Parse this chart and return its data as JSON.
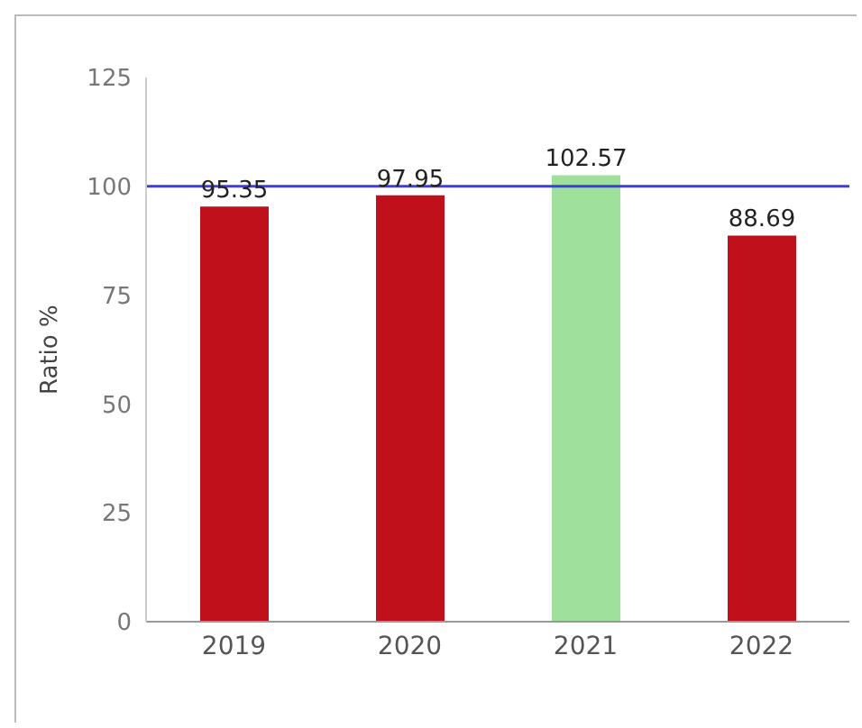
{
  "chart_data": {
    "type": "bar",
    "ylabel": "Ratio %",
    "categories": [
      "2019",
      "2020",
      "2021",
      "2022"
    ],
    "values": [
      95.35,
      97.95,
      102.57,
      88.69
    ],
    "colors": [
      "#bf101c",
      "#bf101c",
      "#9fe09c",
      "#bf101c"
    ],
    "data_labels": true,
    "ylim": [
      0,
      125
    ],
    "yticks": [
      0,
      25,
      50,
      75,
      100,
      125
    ],
    "grid": false,
    "ref_lines": [
      {
        "axis": "y",
        "value": 100,
        "color": "#3d3de0",
        "line_style": "solid"
      }
    ]
  }
}
